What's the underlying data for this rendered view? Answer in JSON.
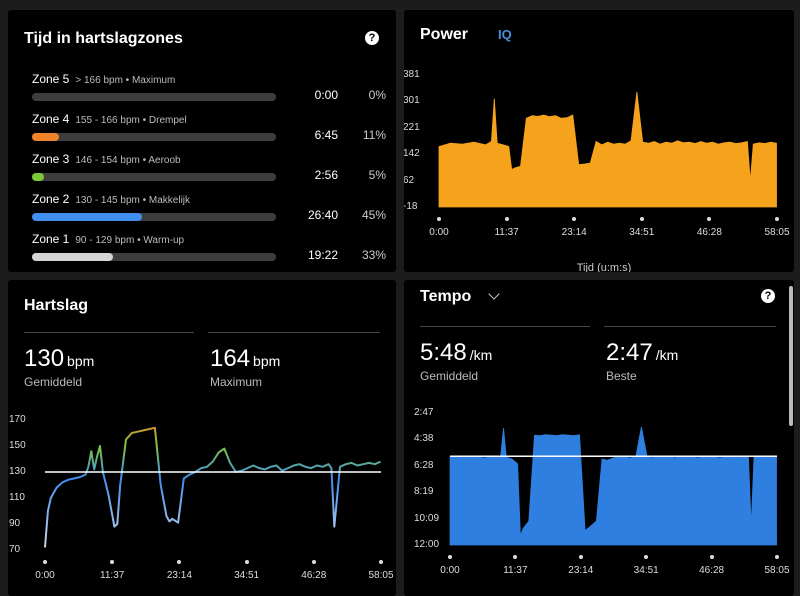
{
  "zones_panel": {
    "title": "Tijd in hartslagzones",
    "help": "?",
    "zones": [
      {
        "name": "Zone 5",
        "desc": "> 166 bpm • Maximum",
        "time": "0:00",
        "pct": "0%",
        "fraction": 0.0,
        "color": "#e64b3c"
      },
      {
        "name": "Zone 4",
        "desc": "155 - 166 bpm • Drempel",
        "time": "6:45",
        "pct": "11%",
        "fraction": 0.11,
        "color": "#f0822a"
      },
      {
        "name": "Zone 3",
        "desc": "146 - 154 bpm • Aeroob",
        "time": "2:56",
        "pct": "5%",
        "fraction": 0.05,
        "color": "#7cc83a"
      },
      {
        "name": "Zone 2",
        "desc": "130 - 145 bpm • Makkelijk",
        "time": "26:40",
        "pct": "45%",
        "fraction": 0.45,
        "color": "#3f8ef0"
      },
      {
        "name": "Zone 1",
        "desc": "90 - 129 bpm • Warm-up",
        "time": "19:22",
        "pct": "33%",
        "fraction": 0.33,
        "color": "#d5d5d5"
      }
    ]
  },
  "power_panel": {
    "title": "Power",
    "tag": "IQ",
    "xlabel": "Tijd (u:m:s)",
    "color": "#f5a21d"
  },
  "hr_panel": {
    "title": "Hartslag",
    "avg_value": "130",
    "avg_unit": "bpm",
    "avg_label": "Gemiddeld",
    "max_value": "164",
    "max_unit": "bpm",
    "max_label": "Maximum"
  },
  "pace_panel": {
    "title": "Tempo",
    "help": "?",
    "avg_value": "5:48",
    "avg_unit": "/km",
    "avg_label": "Gemiddeld",
    "best_value": "2:47",
    "best_unit": "/km",
    "best_label": "Beste",
    "color": "#2f7fe0"
  },
  "chart_data": [
    {
      "type": "area",
      "name": "power",
      "x_ticks": [
        "0:00",
        "11:37",
        "23:14",
        "34:51",
        "46:28",
        "58:05"
      ],
      "y_ticks": [
        "381",
        "301",
        "221",
        "142",
        "62",
        "-18"
      ],
      "ylim": [
        -18,
        381
      ],
      "xlim_minutes": [
        0,
        58.08
      ],
      "xlabel": "Tijd (u:m:s)",
      "x": [
        0,
        2,
        4,
        6,
        8,
        9,
        9.5,
        10,
        11,
        12,
        12.5,
        13,
        14,
        15,
        16,
        17,
        18,
        19,
        20,
        21,
        22,
        23,
        24,
        25,
        26,
        27,
        28,
        29,
        30,
        31,
        32,
        33,
        34,
        35,
        36,
        37,
        38,
        39,
        40,
        41,
        42,
        43,
        44,
        45,
        46,
        47,
        48,
        49,
        50,
        51,
        52,
        53,
        53.5,
        54,
        55,
        56,
        57,
        58
      ],
      "values": [
        165,
        175,
        172,
        178,
        170,
        180,
        310,
        175,
        170,
        165,
        95,
        100,
        105,
        250,
        258,
        256,
        260,
        255,
        258,
        250,
        252,
        260,
        110,
        112,
        115,
        180,
        170,
        178,
        172,
        175,
        172,
        182,
        330,
        178,
        175,
        180,
        172,
        178,
        175,
        182,
        176,
        178,
        174,
        180,
        175,
        178,
        172,
        176,
        178,
        174,
        176,
        180,
        60,
        172,
        176,
        174,
        178,
        175
      ]
    },
    {
      "type": "line",
      "name": "hartslag",
      "x_ticks": [
        "0:00",
        "11:37",
        "23:14",
        "34:51",
        "46:28",
        "58:05"
      ],
      "y_ticks": [
        "170",
        "150",
        "130",
        "110",
        "90",
        "70"
      ],
      "ylim": [
        70,
        170
      ],
      "xlim_minutes": [
        0,
        58.08
      ],
      "reference_line": 130,
      "x": [
        0,
        0.5,
        1,
        2,
        3,
        4,
        5,
        6,
        7,
        7.5,
        8,
        8.5,
        9,
        9.5,
        10,
        11,
        11.5,
        12,
        12.5,
        13,
        14,
        15,
        16,
        17,
        18,
        19,
        20,
        21,
        21.5,
        22,
        23,
        24,
        25,
        26,
        27,
        28,
        29,
        30,
        31,
        32,
        33,
        34,
        35,
        36,
        37,
        38,
        39,
        40,
        41,
        42,
        43,
        44,
        45,
        46,
        47,
        48,
        49,
        49.5,
        50,
        51,
        52,
        53,
        54,
        55,
        56,
        57,
        58
      ],
      "values": [
        72,
        100,
        110,
        118,
        122,
        124,
        125,
        126,
        128,
        134,
        146,
        132,
        142,
        150,
        130,
        112,
        100,
        88,
        90,
        120,
        155,
        160,
        161,
        162,
        163,
        164,
        120,
        96,
        92,
        94,
        91,
        125,
        128,
        130,
        133,
        134,
        138,
        145,
        148,
        137,
        130,
        131,
        133,
        135,
        133,
        132,
        134,
        135,
        131,
        133,
        135,
        136,
        134,
        133,
        135,
        134,
        136,
        133,
        88,
        134,
        136,
        137,
        135,
        136,
        137,
        136,
        138
      ]
    },
    {
      "type": "area",
      "name": "tempo",
      "x_ticks": [
        "0:00",
        "11:37",
        "23:14",
        "34:51",
        "46:28",
        "58:05"
      ],
      "y_ticks": [
        "2:47",
        "4:38",
        "6:28",
        "8:19",
        "10:09",
        "12:00"
      ],
      "ylim_seconds_per_km": [
        720,
        167
      ],
      "xlim_minutes": [
        0,
        58.08
      ],
      "reference_line_seconds_per_km": 348,
      "x": [
        0,
        2,
        4,
        6,
        8,
        9,
        9.5,
        10,
        11,
        12,
        12.5,
        13,
        14,
        15,
        16,
        17,
        18,
        19,
        20,
        21,
        22,
        23,
        24,
        25,
        26,
        27,
        28,
        29,
        30,
        31,
        32,
        33,
        34,
        35,
        36,
        37,
        38,
        39,
        40,
        41,
        42,
        43,
        44,
        45,
        46,
        47,
        48,
        49,
        50,
        51,
        52,
        53,
        53.5,
        54,
        55,
        56,
        57,
        58
      ],
      "values": [
        350,
        352,
        348,
        355,
        350,
        346,
        230,
        352,
        360,
        380,
        680,
        650,
        620,
        260,
        262,
        258,
        260,
        262,
        258,
        260,
        262,
        258,
        660,
        640,
        620,
        360,
        365,
        355,
        350,
        352,
        355,
        350,
        225,
        350,
        355,
        348,
        352,
        350,
        355,
        348,
        352,
        350,
        355,
        350,
        348,
        352,
        355,
        350,
        348,
        352,
        350,
        348,
        640,
        352,
        350,
        348,
        352,
        350
      ]
    }
  ]
}
